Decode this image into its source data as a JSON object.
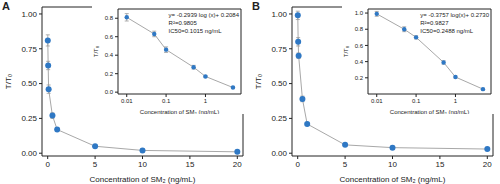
{
  "chart_data": [
    {
      "type": "scatter",
      "title": "A",
      "x": [
        0.01,
        0.05,
        0.1,
        0.5,
        1,
        5,
        10,
        20
      ],
      "values": [
        0.81,
        0.63,
        0.46,
        0.27,
        0.17,
        0.05,
        0.02,
        0.01
      ],
      "errors": [
        0.04,
        0.03,
        0.03,
        0.02,
        0.01,
        0.01,
        0.01,
        0.01
      ],
      "color": "#2f78c4",
      "marker": "circle",
      "line_style": "solid",
      "x_label": "Concentration of SM₂ (ng/mL)",
      "y_label": "T/T₀",
      "xlim": [
        -0.6,
        20.6
      ],
      "ylim": [
        -0.02,
        1.05
      ],
      "xticks": [
        0,
        5,
        10,
        15,
        20
      ],
      "yticks": [
        {
          "value": 0,
          "label": "0.00"
        },
        {
          "value": 0.25,
          "label": "0.25"
        },
        {
          "value": 0.5,
          "label": "0.50"
        },
        {
          "value": 0.75,
          "label": "0.75"
        },
        {
          "value": 1,
          "label": "1.00"
        }
      ]
    },
    {
      "type": "scatter",
      "x": [
        0.01,
        0.05,
        0.1,
        0.5,
        1,
        5
      ],
      "values": [
        0.81,
        0.63,
        0.46,
        0.27,
        0.17,
        0.05
      ],
      "errors": [
        0.04,
        0.03,
        0.03,
        0.02,
        0.01,
        0.01
      ],
      "color": "#2f78c4",
      "marker": "circle",
      "line_style": "solid",
      "log": "x",
      "x_label": "Concentration of SM₂ (ng/mL)",
      "y_label": "T/T₀",
      "xlim": [
        0.006,
        8
      ],
      "ylim": [
        -0.02,
        0.9
      ],
      "xticks": [
        0.01,
        0.1,
        1
      ],
      "yticks": [
        {
          "value": 0,
          "label": "0.0"
        },
        0.2,
        0.4,
        0.6,
        0.8
      ],
      "annotations": [
        "y= -0.2939 log (x)+ 0.2084",
        "R²=0.9805",
        "IC50=0.1015 ng/mL"
      ]
    },
    {
      "type": "scatter",
      "title": "B",
      "x": [
        0.01,
        0.05,
        0.1,
        0.5,
        1,
        5,
        10,
        20
      ],
      "values": [
        0.99,
        0.8,
        0.7,
        0.39,
        0.21,
        0.06,
        0.04,
        0.03
      ],
      "errors": [
        0.03,
        0.03,
        0.02,
        0.02,
        0.01,
        0.01,
        0.01,
        0.01
      ],
      "color": "#2f78c4",
      "marker": "circle",
      "line_style": "solid",
      "x_label": "Concentration of SM₂ (ng/mL)",
      "y_label": "T/T₀",
      "xlim": [
        -0.6,
        20.6
      ],
      "ylim": [
        -0.02,
        1.05
      ],
      "xticks": [
        0,
        5,
        10,
        15,
        20
      ],
      "yticks": [
        {
          "value": 0,
          "label": "0.00"
        },
        {
          "value": 0.25,
          "label": "0.25"
        },
        {
          "value": 0.5,
          "label": "0.50"
        },
        {
          "value": 0.75,
          "label": "0.75"
        },
        {
          "value": 1,
          "label": "1.00"
        }
      ]
    },
    {
      "type": "scatter",
      "x": [
        0.01,
        0.05,
        0.1,
        0.5,
        1,
        5
      ],
      "values": [
        0.99,
        0.8,
        0.7,
        0.39,
        0.21,
        0.06
      ],
      "errors": [
        0.03,
        0.03,
        0.02,
        0.02,
        0.01,
        0.01
      ],
      "color": "#2f78c4",
      "marker": "circle",
      "line_style": "solid",
      "log": "x",
      "x_label": "Concentration of SM₂ (ng/mL)",
      "y_label": "T/T₀",
      "xlim": [
        0.006,
        8
      ],
      "ylim": [
        0,
        1.05
      ],
      "xticks": [
        0.01,
        0.1,
        1
      ],
      "yticks": [
        0.2,
        0.4,
        0.6,
        0.8,
        {
          "value": 1,
          "label": "1.0"
        }
      ],
      "annotations": [
        "y= -0.3757 log(x)+ 0.2730",
        "R²=0.9827",
        "IC50=0.2488 ng/mL"
      ]
    }
  ]
}
